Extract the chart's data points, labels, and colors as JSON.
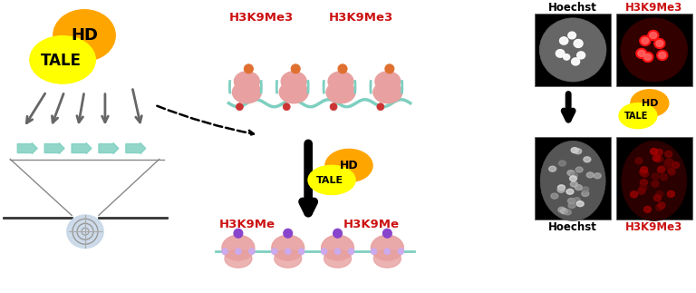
{
  "bg_color": "#ffffff",
  "tale_color": "#ffff00",
  "hd_color": "#ffa500",
  "arrow_color": "#666666",
  "dna_color": "#7ecfc0",
  "nucleosome_color": "#e8a0a0",
  "red_label_color": "#cc1111",
  "black_label_color": "#000000",
  "h3k9me3_label": "H3K9Me3",
  "h3k9me_label": "H3K9Me",
  "hoechst_label": "Hoechst",
  "tale_label": "TALE",
  "hd_label": "HD",
  "green_arrow_color": "#7ecfc0",
  "chrom_color": "#333333",
  "centromere_color": "#c8d8e8"
}
